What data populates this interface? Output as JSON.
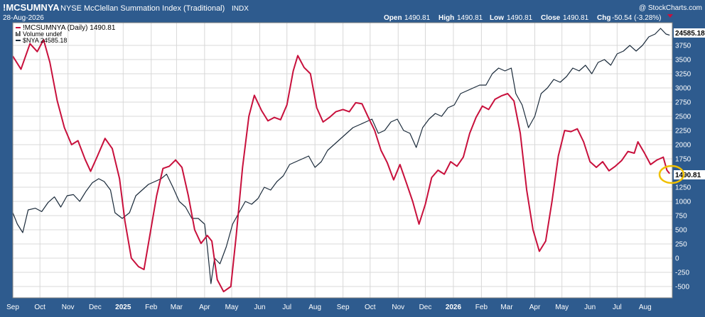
{
  "header": {
    "symbol": "!MCSUMNYA",
    "name": "NYSE McClellan Summation Index (Traditional)",
    "exchange": "INDX",
    "date": "28-Aug-2026",
    "copyright": "@ StockCharts.com",
    "ohlc": {
      "open_label": "Open",
      "open": "1490.81",
      "high_label": "High",
      "high": "1490.81",
      "low_label": "Low",
      "low": "1490.81",
      "close_label": "Close",
      "close": "1490.81",
      "chg_label": "Chg",
      "chg": "-50.54 (-3.28%)"
    }
  },
  "legend": {
    "items": [
      {
        "text": "!MCSUMNYA (Daily) 1490.81",
        "color": "#c8103c",
        "icon": "red-line-icon"
      },
      {
        "text": "Volume undef",
        "color": "#333333",
        "icon": "volume-bars-icon"
      },
      {
        "text": "$NYA 24585.18",
        "color": "#1a2a3a",
        "icon": "dark-line-icon"
      }
    ]
  },
  "chart_data": {
    "type": "line",
    "ylim": [
      -700,
      4150
    ],
    "y_ticks": [
      -500,
      -250,
      0,
      250,
      500,
      750,
      1000,
      1250,
      1500,
      1750,
      2000,
      2250,
      2500,
      2750,
      3000,
      3250,
      3500,
      3750
    ],
    "x_range": [
      "2024-09-01",
      "2026-08-31"
    ],
    "x_ticks": [
      {
        "label": "Sep",
        "date": "2024-09-01"
      },
      {
        "label": "Oct",
        "date": "2024-10-01"
      },
      {
        "label": "Nov",
        "date": "2024-11-01"
      },
      {
        "label": "Dec",
        "date": "2024-12-01"
      },
      {
        "label": "2025",
        "date": "2025-01-01",
        "bold": true
      },
      {
        "label": "Feb",
        "date": "2025-02-01"
      },
      {
        "label": "Mar",
        "date": "2025-03-01"
      },
      {
        "label": "Apr",
        "date": "2025-04-01"
      },
      {
        "label": "May",
        "date": "2025-05-01"
      },
      {
        "label": "Jun",
        "date": "2025-06-01"
      },
      {
        "label": "Jul",
        "date": "2025-07-01"
      },
      {
        "label": "Aug",
        "date": "2025-08-01"
      },
      {
        "label": "Sep",
        "date": "2025-09-01"
      },
      {
        "label": "Oct",
        "date": "2025-10-01"
      },
      {
        "label": "Nov",
        "date": "2025-11-01"
      },
      {
        "label": "Dec",
        "date": "2025-12-01"
      },
      {
        "label": "2026",
        "date": "2026-01-01",
        "bold": true
      },
      {
        "label": "Feb",
        "date": "2026-02-01"
      },
      {
        "label": "Mar",
        "date": "2026-03-01"
      },
      {
        "label": "Apr",
        "date": "2026-04-01"
      },
      {
        "label": "May",
        "date": "2026-05-01"
      },
      {
        "label": "Jun",
        "date": "2026-06-01"
      },
      {
        "label": "Jul",
        "date": "2026-07-01"
      },
      {
        "label": "Aug",
        "date": "2026-08-01"
      }
    ],
    "grid": true,
    "series": [
      {
        "name": "!MCSUMNYA (Daily)",
        "color": "#c8103c",
        "points": [
          [
            "2024-09-01",
            3560
          ],
          [
            "2024-09-10",
            3330
          ],
          [
            "2024-09-20",
            3780
          ],
          [
            "2024-09-28",
            3640
          ],
          [
            "2024-10-05",
            3850
          ],
          [
            "2024-10-12",
            3450
          ],
          [
            "2024-10-20",
            2780
          ],
          [
            "2024-10-28",
            2300
          ],
          [
            "2024-11-05",
            2000
          ],
          [
            "2024-11-12",
            2070
          ],
          [
            "2024-11-20",
            1740
          ],
          [
            "2024-11-26",
            1530
          ],
          [
            "2024-12-03",
            1780
          ],
          [
            "2024-12-12",
            2110
          ],
          [
            "2024-12-20",
            1930
          ],
          [
            "2024-12-28",
            1400
          ],
          [
            "2025-01-03",
            650
          ],
          [
            "2025-01-10",
            0
          ],
          [
            "2025-01-18",
            -150
          ],
          [
            "2025-01-24",
            -200
          ],
          [
            "2025-01-31",
            450
          ],
          [
            "2025-02-07",
            1100
          ],
          [
            "2025-02-14",
            1580
          ],
          [
            "2025-02-21",
            1620
          ],
          [
            "2025-02-28",
            1730
          ],
          [
            "2025-03-07",
            1600
          ],
          [
            "2025-03-14",
            1100
          ],
          [
            "2025-03-21",
            500
          ],
          [
            "2025-03-28",
            260
          ],
          [
            "2025-04-04",
            400
          ],
          [
            "2025-04-09",
            300
          ],
          [
            "2025-04-15",
            -380
          ],
          [
            "2025-04-22",
            -590
          ],
          [
            "2025-04-30",
            -500
          ],
          [
            "2025-05-06",
            400
          ],
          [
            "2025-05-13",
            1600
          ],
          [
            "2025-05-20",
            2500
          ],
          [
            "2025-05-26",
            2870
          ],
          [
            "2025-06-03",
            2600
          ],
          [
            "2025-06-10",
            2420
          ],
          [
            "2025-06-17",
            2480
          ],
          [
            "2025-06-24",
            2440
          ],
          [
            "2025-07-01",
            2700
          ],
          [
            "2025-07-08",
            3300
          ],
          [
            "2025-07-13",
            3570
          ],
          [
            "2025-07-20",
            3360
          ],
          [
            "2025-07-27",
            3250
          ],
          [
            "2025-08-03",
            2650
          ],
          [
            "2025-08-10",
            2400
          ],
          [
            "2025-08-17",
            2480
          ],
          [
            "2025-08-24",
            2580
          ],
          [
            "2025-09-01",
            2620
          ],
          [
            "2025-09-08",
            2580
          ],
          [
            "2025-09-15",
            2740
          ],
          [
            "2025-09-22",
            2720
          ],
          [
            "2025-09-29",
            2480
          ],
          [
            "2025-10-06",
            2250
          ],
          [
            "2025-10-13",
            1900
          ],
          [
            "2025-10-20",
            1680
          ],
          [
            "2025-10-27",
            1380
          ],
          [
            "2025-11-03",
            1650
          ],
          [
            "2025-11-10",
            1330
          ],
          [
            "2025-11-17",
            1000
          ],
          [
            "2025-11-24",
            600
          ],
          [
            "2025-12-01",
            950
          ],
          [
            "2025-12-08",
            1420
          ],
          [
            "2025-12-15",
            1550
          ],
          [
            "2025-12-22",
            1480
          ],
          [
            "2025-12-29",
            1700
          ],
          [
            "2026-01-05",
            1620
          ],
          [
            "2026-01-12",
            1780
          ],
          [
            "2026-01-19",
            2200
          ],
          [
            "2026-01-26",
            2480
          ],
          [
            "2026-02-02",
            2680
          ],
          [
            "2026-02-09",
            2620
          ],
          [
            "2026-02-16",
            2800
          ],
          [
            "2026-02-23",
            2860
          ],
          [
            "2026-03-02",
            2900
          ],
          [
            "2026-03-09",
            2770
          ],
          [
            "2026-03-16",
            2200
          ],
          [
            "2026-03-23",
            1200
          ],
          [
            "2026-03-30",
            500
          ],
          [
            "2026-04-06",
            120
          ],
          [
            "2026-04-13",
            300
          ],
          [
            "2026-04-20",
            1000
          ],
          [
            "2026-04-27",
            1800
          ],
          [
            "2026-05-04",
            2250
          ],
          [
            "2026-05-11",
            2230
          ],
          [
            "2026-05-18",
            2280
          ],
          [
            "2026-05-25",
            2050
          ],
          [
            "2026-06-01",
            1700
          ],
          [
            "2026-06-08",
            1600
          ],
          [
            "2026-06-15",
            1700
          ],
          [
            "2026-06-22",
            1540
          ],
          [
            "2026-06-29",
            1620
          ],
          [
            "2026-07-06",
            1720
          ],
          [
            "2026-07-13",
            1880
          ],
          [
            "2026-07-20",
            1850
          ],
          [
            "2026-07-24",
            2050
          ],
          [
            "2026-07-31",
            1860
          ],
          [
            "2026-08-07",
            1650
          ],
          [
            "2026-08-14",
            1730
          ],
          [
            "2026-08-21",
            1780
          ],
          [
            "2026-08-25",
            1550
          ],
          [
            "2026-08-28",
            1490.81
          ]
        ]
      },
      {
        "name": "$NYA",
        "color": "#1a2a3a",
        "points": [
          [
            "2024-09-01",
            800
          ],
          [
            "2024-09-06",
            600
          ],
          [
            "2024-09-12",
            450
          ],
          [
            "2024-09-18",
            850
          ],
          [
            "2024-09-26",
            880
          ],
          [
            "2024-10-03",
            820
          ],
          [
            "2024-10-10",
            980
          ],
          [
            "2024-10-17",
            1080
          ],
          [
            "2024-10-24",
            900
          ],
          [
            "2024-10-31",
            1100
          ],
          [
            "2024-11-07",
            1120
          ],
          [
            "2024-11-14",
            1000
          ],
          [
            "2024-11-21",
            1180
          ],
          [
            "2024-11-28",
            1330
          ],
          [
            "2024-12-05",
            1400
          ],
          [
            "2024-12-11",
            1350
          ],
          [
            "2024-12-18",
            1200
          ],
          [
            "2024-12-23",
            800
          ],
          [
            "2024-12-31",
            700
          ],
          [
            "2025-01-08",
            800
          ],
          [
            "2025-01-15",
            1100
          ],
          [
            "2025-01-22",
            1200
          ],
          [
            "2025-01-29",
            1300
          ],
          [
            "2025-02-05",
            1350
          ],
          [
            "2025-02-12",
            1400
          ],
          [
            "2025-02-18",
            1480
          ],
          [
            "2025-02-25",
            1250
          ],
          [
            "2025-03-04",
            1000
          ],
          [
            "2025-03-11",
            900
          ],
          [
            "2025-03-18",
            700
          ],
          [
            "2025-03-25",
            700
          ],
          [
            "2025-04-01",
            600
          ],
          [
            "2025-04-04",
            200
          ],
          [
            "2025-04-08",
            -450
          ],
          [
            "2025-04-12",
            0
          ],
          [
            "2025-04-18",
            -100
          ],
          [
            "2025-04-25",
            200
          ],
          [
            "2025-05-02",
            600
          ],
          [
            "2025-05-09",
            800
          ],
          [
            "2025-05-16",
            1000
          ],
          [
            "2025-05-23",
            950
          ],
          [
            "2025-05-30",
            1050
          ],
          [
            "2025-06-06",
            1250
          ],
          [
            "2025-06-13",
            1200
          ],
          [
            "2025-06-20",
            1350
          ],
          [
            "2025-06-27",
            1450
          ],
          [
            "2025-07-04",
            1650
          ],
          [
            "2025-07-11",
            1700
          ],
          [
            "2025-07-18",
            1750
          ],
          [
            "2025-07-25",
            1800
          ],
          [
            "2025-08-01",
            1600
          ],
          [
            "2025-08-08",
            1700
          ],
          [
            "2025-08-15",
            1900
          ],
          [
            "2025-08-22",
            2000
          ],
          [
            "2025-08-29",
            2100
          ],
          [
            "2025-09-05",
            2200
          ],
          [
            "2025-09-12",
            2300
          ],
          [
            "2025-09-19",
            2350
          ],
          [
            "2025-09-26",
            2400
          ],
          [
            "2025-10-03",
            2450
          ],
          [
            "2025-10-10",
            2200
          ],
          [
            "2025-10-17",
            2250
          ],
          [
            "2025-10-24",
            2400
          ],
          [
            "2025-10-31",
            2450
          ],
          [
            "2025-11-07",
            2250
          ],
          [
            "2025-11-14",
            2200
          ],
          [
            "2025-11-21",
            1950
          ],
          [
            "2025-11-28",
            2300
          ],
          [
            "2025-12-05",
            2450
          ],
          [
            "2025-12-12",
            2550
          ],
          [
            "2025-12-19",
            2500
          ],
          [
            "2025-12-26",
            2650
          ],
          [
            "2026-01-02",
            2700
          ],
          [
            "2026-01-09",
            2900
          ],
          [
            "2026-01-16",
            2950
          ],
          [
            "2026-01-23",
            3000
          ],
          [
            "2026-01-30",
            3050
          ],
          [
            "2026-02-06",
            3050
          ],
          [
            "2026-02-13",
            3250
          ],
          [
            "2026-02-20",
            3350
          ],
          [
            "2026-02-27",
            3300
          ],
          [
            "2026-03-06",
            3350
          ],
          [
            "2026-03-11",
            2900
          ],
          [
            "2026-03-18",
            2700
          ],
          [
            "2026-03-25",
            2300
          ],
          [
            "2026-04-01",
            2500
          ],
          [
            "2026-04-08",
            2900
          ],
          [
            "2026-04-15",
            3000
          ],
          [
            "2026-04-22",
            3150
          ],
          [
            "2026-04-29",
            3100
          ],
          [
            "2026-05-06",
            3200
          ],
          [
            "2026-05-13",
            3350
          ],
          [
            "2026-05-20",
            3300
          ],
          [
            "2026-05-27",
            3400
          ],
          [
            "2026-06-03",
            3250
          ],
          [
            "2026-06-10",
            3450
          ],
          [
            "2026-06-17",
            3500
          ],
          [
            "2026-06-24",
            3400
          ],
          [
            "2026-07-01",
            3600
          ],
          [
            "2026-07-08",
            3650
          ],
          [
            "2026-07-15",
            3750
          ],
          [
            "2026-07-22",
            3650
          ],
          [
            "2026-07-29",
            3750
          ],
          [
            "2026-08-05",
            3900
          ],
          [
            "2026-08-12",
            3950
          ],
          [
            "2026-08-18",
            4050
          ],
          [
            "2026-08-24",
            3950
          ],
          [
            "2026-08-28",
            3930
          ]
        ]
      }
    ],
    "last_value_labels": [
      {
        "text": "24585.18",
        "series": "$NYA"
      },
      {
        "text": "1490.81",
        "series": "!MCSUMNYA (Daily)"
      }
    ],
    "annotation": {
      "type": "circle-highlight",
      "color": "#f0c000",
      "series": "!MCSUMNYA (Daily)",
      "date": "2026-08-28"
    }
  }
}
